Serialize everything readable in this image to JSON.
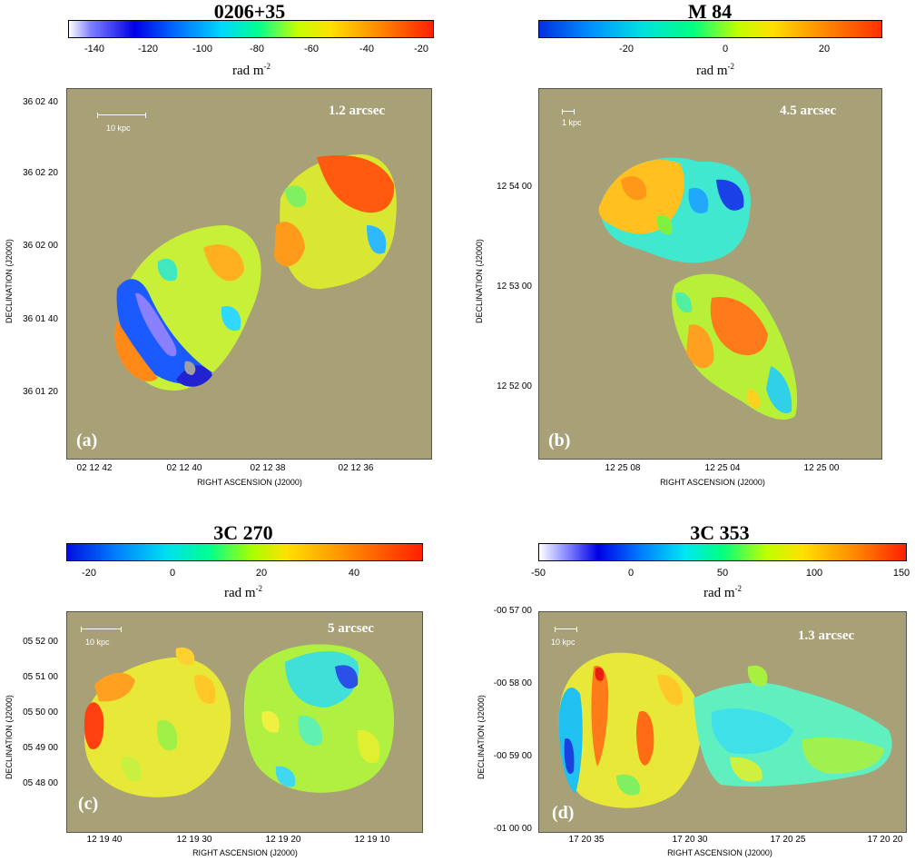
{
  "chart_data": [
    {
      "type": "heatmap",
      "title": "0206+35",
      "colorbar": {
        "min": -150,
        "max": -15,
        "ticks": [
          "-140",
          "-120",
          "-100",
          "-80",
          "-60",
          "-40",
          "-20"
        ],
        "tick_values": [
          -140,
          -120,
          -100,
          -80,
          -60,
          -40,
          -20
        ],
        "unit": "rad m",
        "unit_exp": "-2",
        "scale": "white-blue-cyan-green-yellow-red"
      },
      "resolution": "1.2 arcsec",
      "panel_letter": "(a)",
      "scale_bar": "10 kpc",
      "xlabel": "RIGHT ASCENSION  (J2000)",
      "ylabel": "DECLINATION  (J2000)",
      "xticks": [
        "02 12 42",
        "02 12 40",
        "02 12 38",
        "02 12 36"
      ],
      "yticks": [
        "36 02 40",
        "36 02 20",
        "36 02 00",
        "36 01 40",
        "36 01 20"
      ]
    },
    {
      "type": "heatmap",
      "title": "M 84",
      "colorbar": {
        "min": -38,
        "max": 32,
        "ticks": [
          "-20",
          "0",
          "20"
        ],
        "tick_values": [
          -20,
          0,
          20
        ],
        "unit": "rad m",
        "unit_exp": "-2",
        "scale": "blue-cyan-green-yellow-red"
      },
      "resolution": "4.5 arcsec",
      "panel_letter": "(b)",
      "scale_bar": "1 kpc",
      "xlabel": "RIGHT ASCENSION  (J2000)",
      "ylabel": "DECLINATION  (J2000)",
      "xticks": [
        "12 25 08",
        "12 25 04",
        "12 25 00"
      ],
      "yticks": [
        "12 54 00",
        "12 53 00",
        "12 52 00"
      ]
    },
    {
      "type": "heatmap",
      "title": "3C 270",
      "colorbar": {
        "min": -25,
        "max": 55,
        "ticks": [
          "-20",
          "0",
          "20",
          "40"
        ],
        "tick_values": [
          -20,
          0,
          20,
          40
        ],
        "unit": "rad m",
        "unit_exp": "-2",
        "scale": "blue-cyan-green-yellow-red"
      },
      "resolution": "5 arcsec",
      "panel_letter": "(c)",
      "scale_bar": "10 kpc",
      "xlabel": "RIGHT ASCENSION  (J2000)",
      "ylabel": "DECLINATION  (J2000)",
      "xticks": [
        "12 19 40",
        "12 19 30",
        "12 19 20",
        "12 19 10"
      ],
      "yticks": [
        "05 52 00",
        "05 51 00",
        "05 50 00",
        "05 49 00",
        "05 48 00"
      ]
    },
    {
      "type": "heatmap",
      "title": "3C 353",
      "colorbar": {
        "min": -50,
        "max": 150,
        "ticks": [
          "-50",
          "0",
          "50",
          "100",
          "150"
        ],
        "tick_values": [
          -50,
          0,
          50,
          100,
          150
        ],
        "unit": "rad m",
        "unit_exp": "-2",
        "scale": "white-blue-cyan-green-yellow-red"
      },
      "resolution": "1.3 arcsec",
      "panel_letter": "(d)",
      "scale_bar": "10 kpc",
      "xlabel": "RIGHT ASCENSION  (J2000)",
      "ylabel": "DECLINATION  (J2000)",
      "xticks": [
        "17 20 35",
        "17 20 30",
        "17 20 25",
        "17 20 20"
      ],
      "yticks": [
        "-00 57 00",
        "-00 58 00",
        "-00 59 00",
        "-01 00 00"
      ]
    }
  ]
}
